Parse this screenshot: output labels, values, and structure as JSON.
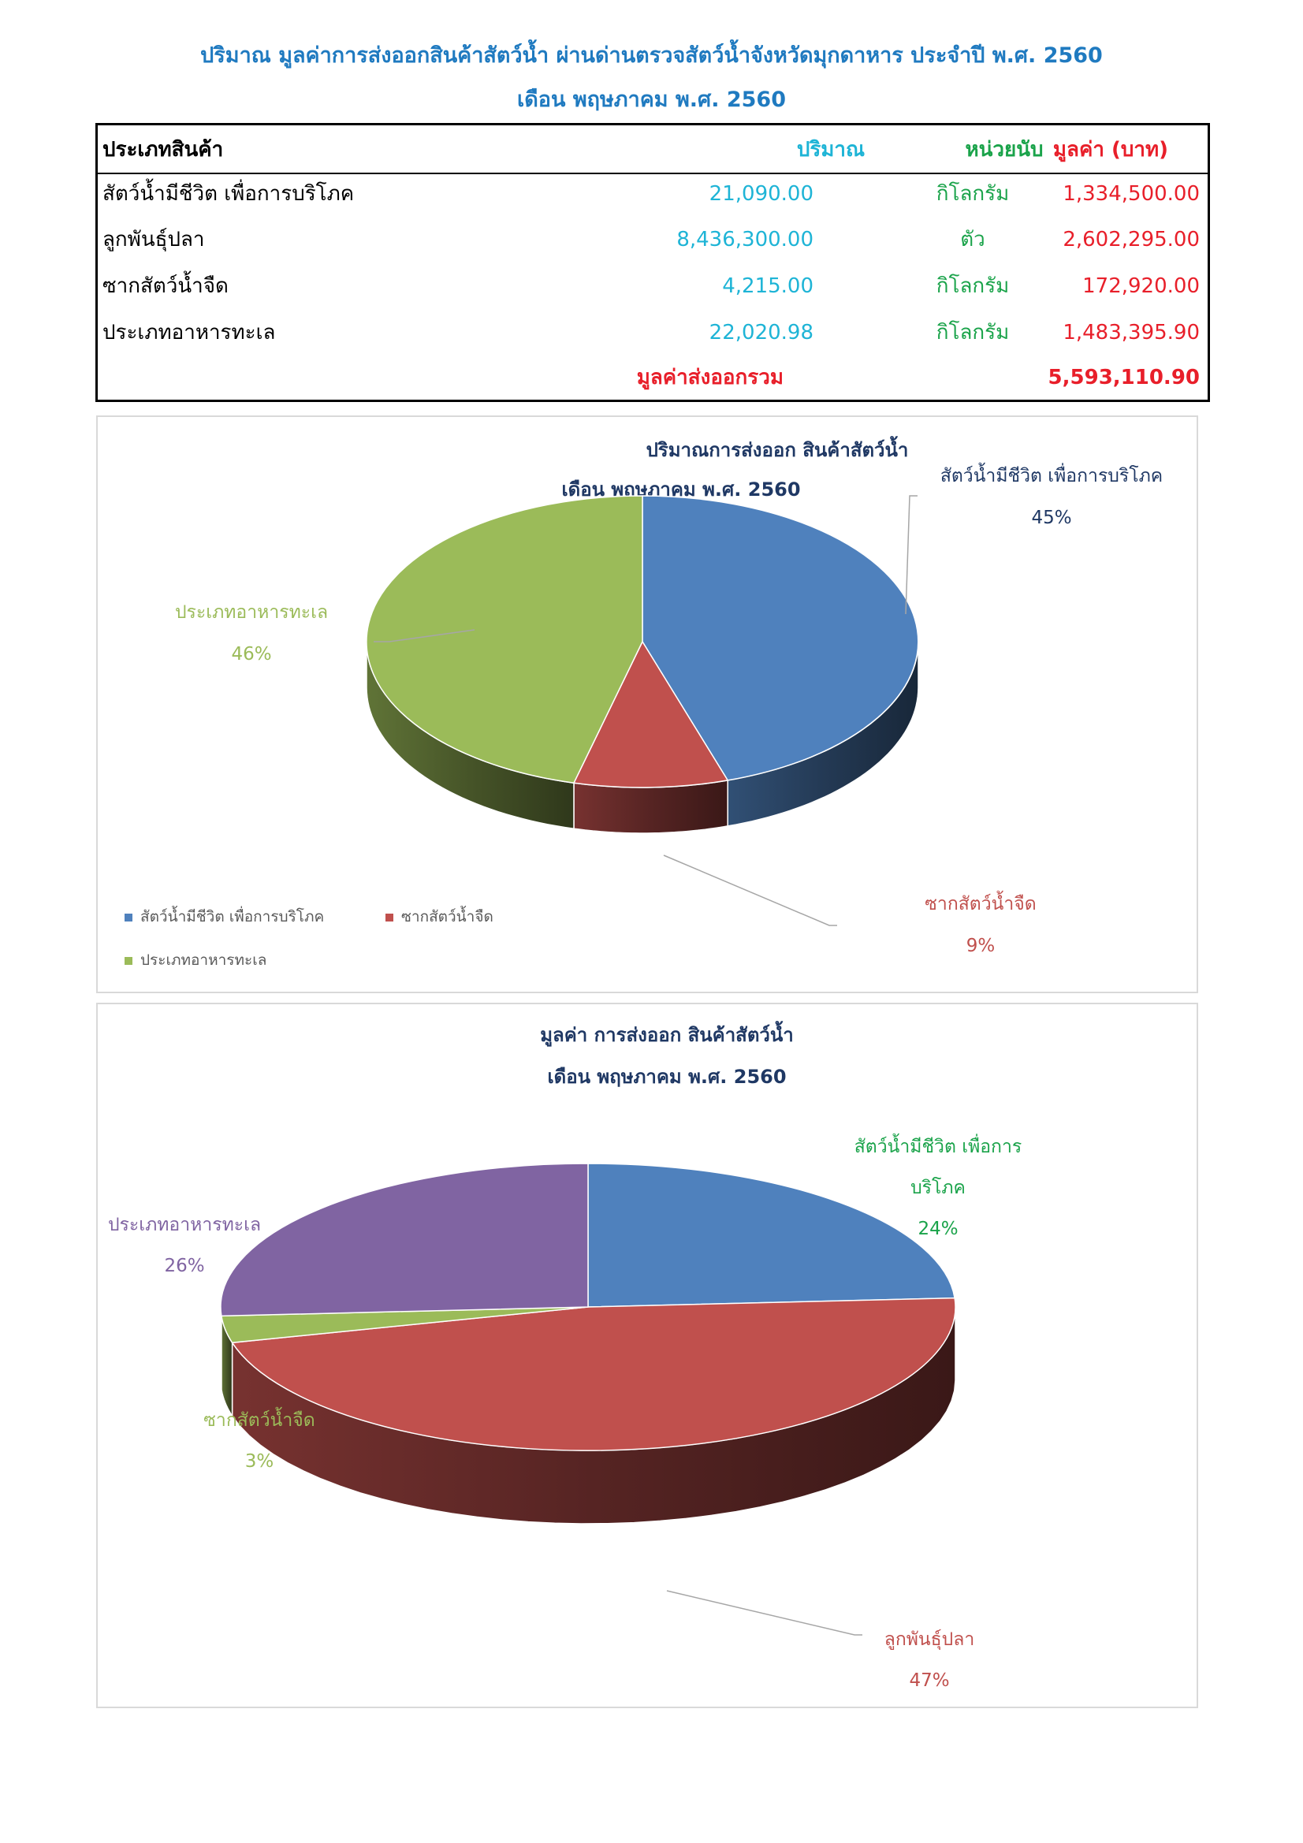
{
  "header": {
    "title_line1": "ปริมาณ มูลค่าการส่งออกสินค้าสัตว์น้ำ ผ่านด่านตรวจสัตว์น้ำจังหวัดมุกดาหาร ประจำปี พ.ศ. 2560",
    "title_line2": "เดือน พฤษภาคม พ.ศ. 2560"
  },
  "table": {
    "columns": {
      "type": "ประเภทสินค้า",
      "quantity": "ปริมาณ",
      "unit": "หน่วยนับ",
      "value": "มูลค่า (บาท)"
    },
    "rows": [
      {
        "type": "สัตว์น้ำมีชีวิต เพื่อการบริโภค",
        "quantity": "21,090.00",
        "unit": "กิโลกรัม",
        "value": "1,334,500.00"
      },
      {
        "type": "ลูกพันธุ์ปลา",
        "quantity": "8,436,300.00",
        "unit": "ตัว",
        "value": "2,602,295.00"
      },
      {
        "type": "ซากสัตว์น้ำจืด",
        "quantity": "4,215.00",
        "unit": "กิโลกรัม",
        "value": "172,920.00"
      },
      {
        "type": "ประเภทอาหารทะเล",
        "quantity": "22,020.98",
        "unit": "กิโลกรัม",
        "value": "1,483,395.90"
      }
    ],
    "total_label": "มูลค่าส่งออกรวม",
    "total_value": "5,593,110.90"
  },
  "colors": {
    "blue": "#4f81bd",
    "red": "#c0504d",
    "green": "#9bbb59",
    "purple": "#8064a2",
    "title_blue": "#1f7ac0",
    "qty_cyan": "#1eb4d6",
    "unit_green": "#1aa34a",
    "value_red": "#e81f2a"
  },
  "chart_data": [
    {
      "type": "pie",
      "title": "ปริมาณการส่งออก สินค้าสัตว์น้ำ",
      "subtitle": "เดือน พฤษภาคม พ.ศ. 2560",
      "categories": [
        "สัตว์น้ำมีชีวิต เพื่อการบริโภค",
        "ซากสัตว์น้ำจืด",
        "ประเภทอาหารทะเล"
      ],
      "values": [
        45,
        9,
        46
      ],
      "value_labels": [
        "45%",
        "9%",
        "46%"
      ],
      "colors": [
        "#4f81bd",
        "#c0504d",
        "#9bbb59"
      ],
      "legend": [
        "สัตว์น้ำมีชีวิต เพื่อการบริโภค",
        "ซากสัตว์น้ำจืด",
        "ประเภทอาหารทะเล"
      ],
      "legend_position": "bottom-left"
    },
    {
      "type": "pie",
      "title": "มูลค่า การส่งออก สินค้าสัตว์น้ำ",
      "subtitle": "เดือน พฤษภาคม  พ.ศ. 2560",
      "categories": [
        "สัตว์น้ำมีชีวิต เพื่อการบริโภค",
        "ลูกพันธุ์ปลา",
        "ซากสัตว์น้ำจืด",
        "ประเภทอาหารทะเล"
      ],
      "label_lines": [
        [
          "สัตว์น้ำมีชีวิต เพื่อการ",
          "บริโภค"
        ],
        [
          "ลูกพันธุ์ปลา"
        ],
        [
          "ซากสัตว์น้ำจืด"
        ],
        [
          "ประเภทอาหารทะเล"
        ]
      ],
      "values": [
        24,
        47,
        3,
        26
      ],
      "value_labels": [
        "24%",
        "47%",
        "3%",
        "26%"
      ],
      "colors": [
        "#4f81bd",
        "#c0504d",
        "#9bbb59",
        "#8064a2"
      ],
      "label_colors": [
        "#1aa34a",
        "#c0504d",
        "#9bbb59",
        "#8064a2"
      ]
    }
  ]
}
